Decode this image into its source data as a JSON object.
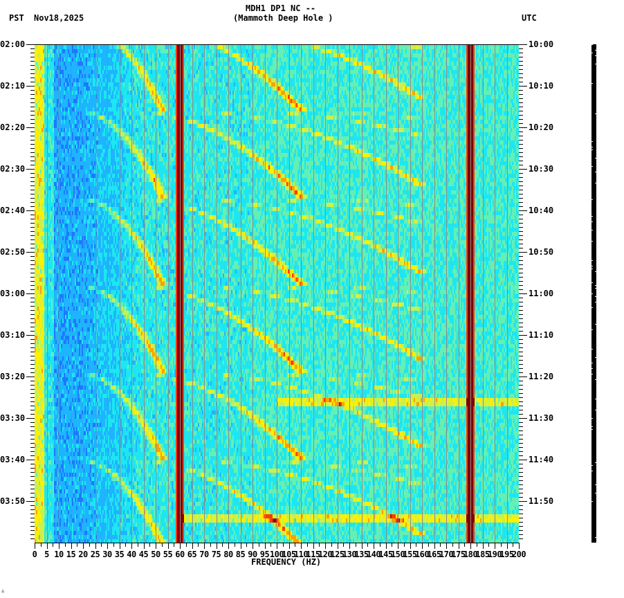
{
  "header": {
    "station_line": "MDH1 DP1 NC --",
    "location_line": "(Mammoth Deep Hole )",
    "left_timezone": "PST",
    "date": "Nov18,2025",
    "right_timezone": "UTC"
  },
  "footer": {
    "corner_mark": "∴"
  },
  "colors": {
    "colormap": [
      "#0a3cff",
      "#1e78ff",
      "#1eb4ff",
      "#1ee6f0",
      "#64f0b4",
      "#c8f050",
      "#fff000",
      "#ffa000",
      "#ff3c00",
      "#c80000",
      "#800000"
    ],
    "gridline": "#8c8c8c",
    "axis": "#000000"
  },
  "chart_data": {
    "type": "heatmap",
    "title": "MDH1 DP1 NC -- (Mammoth Deep Hole )",
    "xlabel": "FREQUENCY (HZ)",
    "ylabel_left": "PST",
    "ylabel_right": "UTC",
    "xlim": [
      0,
      200
    ],
    "x_ticks": [
      "0",
      "5",
      "10",
      "15",
      "20",
      "25",
      "30",
      "35",
      "40",
      "45",
      "50",
      "55",
      "60",
      "65",
      "70",
      "75",
      "80",
      "85",
      "90",
      "95",
      "100",
      "105",
      "110",
      "115",
      "120",
      "125",
      "130",
      "135",
      "140",
      "145",
      "150",
      "155",
      "160",
      "165",
      "170",
      "175",
      "180",
      "185",
      "190",
      "195",
      "200"
    ],
    "y_ticks_left": [
      "02:00",
      "02:10",
      "02:20",
      "02:30",
      "02:40",
      "02:50",
      "03:00",
      "03:10",
      "03:20",
      "03:30",
      "03:40",
      "03:50"
    ],
    "y_ticks_right": [
      "10:00",
      "10:10",
      "10:20",
      "10:30",
      "10:40",
      "10:50",
      "11:00",
      "11:10",
      "11:20",
      "11:30",
      "11:40",
      "11:50"
    ],
    "time_span_minutes": 120,
    "minor_tick_minutes": 1,
    "grid_x_every_hz": 5,
    "persistent_lines_hz": [
      60,
      180
    ],
    "chirp_period_minutes": 21,
    "chirp_start_minutes": [
      -5,
      16,
      37,
      58,
      79,
      100
    ],
    "chirp_harmonic_count": 6,
    "chirp_description": "Repeating upward-sweeping curved harmonic bands (gliding tones) approx every 21 minutes, fundamentals sweeping ~20-60 Hz with harmonics extending to ~150 Hz",
    "horizontal_events": [
      {
        "time_minutes": 86,
        "freq_range_hz": [
          100,
          200
        ],
        "note": "broadband burst near 03:26, peak ~164 Hz"
      },
      {
        "time_minutes": 114,
        "freq_range_hz": [
          60,
          200
        ],
        "note": "broadband band near 03:54"
      }
    ],
    "low_frequency_energy_hz": [
      0,
      5
    ]
  }
}
